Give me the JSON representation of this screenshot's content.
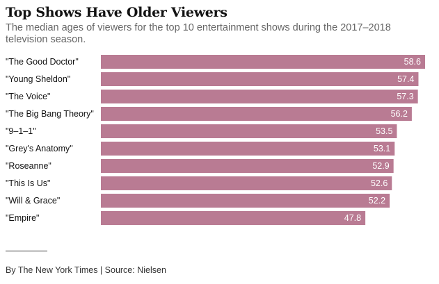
{
  "header": {
    "title": "Top Shows Have Older Viewers",
    "subtitle": "The median ages of viewers for the top 10 entertainment shows during the 2017–2018 television season."
  },
  "chart_data": {
    "type": "bar",
    "orientation": "horizontal",
    "title": "Top Shows Have Older Viewers",
    "xlabel": "",
    "ylabel": "",
    "categories": [
      "\"The Good Doctor\"",
      "\"Young Sheldon\"",
      "\"The Voice\"",
      "\"The Big Bang Theory\"",
      "\"9–1–1\"",
      "\"Grey's Anatomy\"",
      "\"Roseanne\"",
      "\"This Is Us\"",
      "\"Will & Grace\"",
      "\"Empire\""
    ],
    "values": [
      58.6,
      57.4,
      57.3,
      56.2,
      53.5,
      53.1,
      52.9,
      52.6,
      52.2,
      47.8
    ],
    "value_labels": [
      "58.6",
      "57.4",
      "57.3",
      "56.2",
      "53.5",
      "53.1",
      "52.9",
      "52.6",
      "52.2",
      "47.8"
    ],
    "xlim": [
      0,
      58.6
    ],
    "grid": false,
    "legend": "none"
  },
  "colors": {
    "bar": "#b97b93",
    "bar_label": "#ffffff",
    "category_label": "#121212"
  },
  "footer": {
    "credit": "By The New York Times | Source: Nielsen"
  }
}
